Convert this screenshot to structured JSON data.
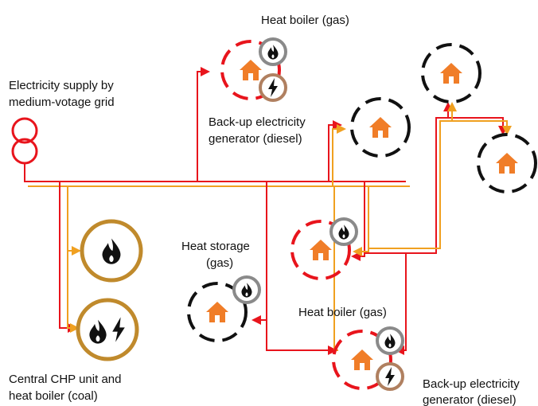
{
  "labels": [
    {
      "lines": [
        "Heat boiler (gas)"
      ]
    },
    {
      "lines": [
        "Electricity supply by",
        "medium-votage grid"
      ]
    },
    {
      "lines": [
        "Back-up electricity",
        "generator (diesel)"
      ]
    },
    {
      "lines": [
        "Heat storage",
        "(gas)"
      ]
    },
    {
      "lines": [
        "Heat boiler (gas)"
      ]
    },
    {
      "lines": [
        "Central CHP unit and",
        "heat boiler (coal)"
      ]
    },
    {
      "lines": [
        "Back-up electricity",
        "generator (diesel)"
      ]
    }
  ]
}
